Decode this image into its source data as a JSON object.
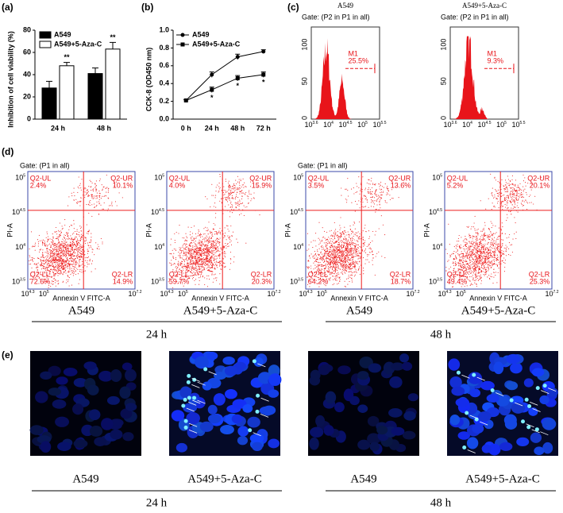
{
  "chart_data": [
    {
      "type": "bar",
      "panel_label": "(a)",
      "ylabel": "Inhibition of cell viability (%)",
      "categories": [
        "24 h",
        "48 h"
      ],
      "series": [
        {
          "name": "A549",
          "color": "#000000",
          "values": [
            28,
            41
          ],
          "errors": [
            6,
            5
          ]
        },
        {
          "name": "A549+5-Aza-C",
          "color": "#ffffff",
          "values": [
            48,
            63
          ],
          "errors": [
            3,
            6
          ]
        }
      ],
      "ylim": [
        0,
        80
      ],
      "yticks": [
        0,
        20,
        40,
        60,
        80
      ],
      "annotations": [
        "**",
        "**"
      ]
    },
    {
      "type": "line",
      "panel_label": "(b)",
      "ylabel": "CCK-8 (OD450 nm)",
      "categories": [
        "0 h",
        "24 h",
        "48 h",
        "72 h"
      ],
      "series": [
        {
          "name": "A549",
          "color": "#000000",
          "values": [
            0.21,
            0.5,
            0.7,
            0.76
          ],
          "errors": [
            0.01,
            0.03,
            0.03,
            0.02
          ]
        },
        {
          "name": "A549+5-Aza-C",
          "color": "#000000",
          "values": [
            0.21,
            0.33,
            0.46,
            0.5
          ],
          "errors": [
            0.01,
            0.03,
            0.03,
            0.03
          ]
        }
      ],
      "ylim": [
        0,
        1
      ],
      "yticks": [
        {
          "value": 0,
          "label": "0.0"
        },
        0.2,
        0.4,
        0.6,
        0.8,
        {
          "value": 1,
          "label": "1.0"
        }
      ],
      "annotations": [
        "*",
        "*",
        "*"
      ]
    }
  ],
  "panel_c": {
    "label": "(c)",
    "tick_base": "10",
    "yticks": [
      "0",
      "50",
      "100"
    ],
    "xticks": [
      "3.6",
      "4",
      "4.5",
      "5",
      "5.5"
    ],
    "plots": [
      {
        "title": "A549",
        "gate": "Gate: (P2 in P1 in all)",
        "marker": "M1",
        "percent": "25.5%"
      },
      {
        "title": "A549+5-Aza-C",
        "gate": "Gate: (P2 in P1 in all)",
        "marker": "M1",
        "percent": "9.3%"
      }
    ]
  },
  "panel_d": {
    "label": "(d)",
    "gate": "Gate: (P1 in all)",
    "xlabel": "Annexin V FITC-A",
    "ylabel": "PI-A",
    "tick_base": "10",
    "xticks": [
      "4.3",
      "5",
      "7.2"
    ],
    "yticks": [
      "3.5",
      "4",
      "4.5",
      "5"
    ],
    "quadrants": [
      "Q2-UL",
      "Q2-UR",
      "Q2-LL",
      "Q2-LR"
    ],
    "plots": [
      {
        "caption": "A549",
        "percents": [
          "2.4%",
          "10.1%",
          "72.6%",
          "14.9%"
        ]
      },
      {
        "caption": "A549+5-Aza-C",
        "percents": [
          "4.0%",
          "15.9%",
          "59.7%",
          "20.3%"
        ]
      },
      {
        "caption": "A549",
        "percents": [
          "3.5%",
          "13.6%",
          "64.2%",
          "18.7%"
        ]
      },
      {
        "caption": "A549+5-Aza-C",
        "percents": [
          "5.2%",
          "20.1%",
          "49.4%",
          "25.3%"
        ]
      }
    ],
    "groups": [
      "24 h",
      "48 h"
    ]
  },
  "panel_e": {
    "label": "(e)",
    "captions": [
      "A549",
      "A549+5-Aza-C",
      "A549",
      "A549+5-Aza-C"
    ],
    "groups": [
      "24 h",
      "48 h"
    ]
  }
}
